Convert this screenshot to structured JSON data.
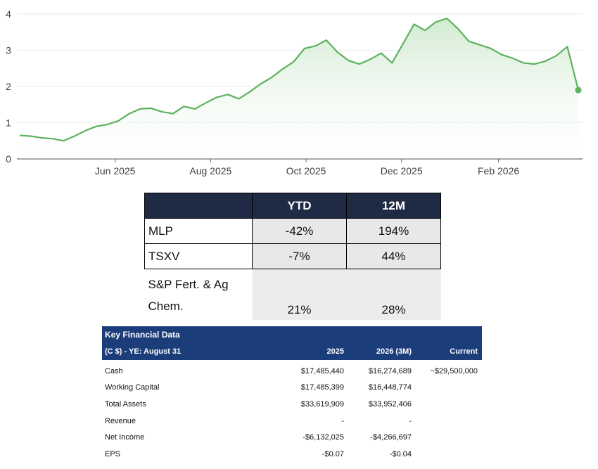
{
  "chart_data": {
    "type": "area",
    "ylim": [
      0,
      4
    ],
    "y_ticks": [
      "0",
      "1",
      "2",
      "3",
      "4"
    ],
    "x_ticks": [
      "Jun 2025",
      "Aug 2025",
      "Oct 2025",
      "Dec 2025",
      "Feb 2026"
    ],
    "line_color": "#5cb25d",
    "fill_color": "#dff1df",
    "grid": true,
    "x": [
      "2025-04-01",
      "2025-04-08",
      "2025-04-15",
      "2025-04-22",
      "2025-04-29",
      "2025-05-06",
      "2025-05-13",
      "2025-05-20",
      "2025-05-27",
      "2025-06-03",
      "2025-06-10",
      "2025-06-17",
      "2025-06-24",
      "2025-07-01",
      "2025-07-08",
      "2025-07-15",
      "2025-07-22",
      "2025-07-29",
      "2025-08-05",
      "2025-08-12",
      "2025-08-19",
      "2025-08-26",
      "2025-09-02",
      "2025-09-09",
      "2025-09-16",
      "2025-09-23",
      "2025-09-30",
      "2025-10-07",
      "2025-10-14",
      "2025-10-21",
      "2025-10-28",
      "2025-11-04",
      "2025-11-11",
      "2025-11-18",
      "2025-11-25",
      "2025-12-02",
      "2025-12-09",
      "2025-12-16",
      "2025-12-23",
      "2025-12-30",
      "2026-01-06",
      "2026-01-13",
      "2026-01-20",
      "2026-01-27",
      "2026-02-03",
      "2026-02-10",
      "2026-02-17",
      "2026-02-24",
      "2026-03-03",
      "2026-03-10",
      "2026-03-17",
      "2026-03-24"
    ],
    "values": [
      0.65,
      0.63,
      0.58,
      0.56,
      0.5,
      0.63,
      0.78,
      0.9,
      0.95,
      1.05,
      1.25,
      1.38,
      1.4,
      1.3,
      1.25,
      1.45,
      1.38,
      1.55,
      1.7,
      1.78,
      1.66,
      1.85,
      2.07,
      2.25,
      2.48,
      2.68,
      3.05,
      3.12,
      3.28,
      2.95,
      2.72,
      2.62,
      2.75,
      2.92,
      2.65,
      3.18,
      3.72,
      3.55,
      3.78,
      3.88,
      3.6,
      3.25,
      3.15,
      3.05,
      2.88,
      2.78,
      2.65,
      2.62,
      2.7,
      2.85,
      3.1,
      1.9
    ]
  },
  "perf_table": {
    "headers": [
      "",
      "YTD",
      "12M"
    ],
    "rows": [
      {
        "name": "MLP",
        "ytd": "-42%",
        "m12": "194%"
      },
      {
        "name": "TSXV",
        "ytd": "-7%",
        "m12": "44%"
      },
      {
        "name": "S&P Fert. & Ag Chem.",
        "ytd": "21%",
        "m12": "28%"
      }
    ]
  },
  "key_financial": {
    "title": "Key Financial Data",
    "subtitle": "(C $) - YE: August 31",
    "col_2025": "2025",
    "col_2026": "2026 (3M)",
    "col_current": "Current",
    "rows": [
      {
        "label": "Cash",
        "v2025": "$17,485,440",
        "v2026": "$16,274,689",
        "current": "~$29,500,000"
      },
      {
        "label": "Working Capital",
        "v2025": "$17,485,399",
        "v2026": "$16,448,774",
        "current": ""
      },
      {
        "label": "Total Assets",
        "v2025": "$33,619,909",
        "v2026": "$33,952,406",
        "current": ""
      },
      {
        "label": "Revenue",
        "v2025": "-",
        "v2026": "-",
        "current": ""
      },
      {
        "label": "Net Income",
        "v2025": "-$6,132,025",
        "v2026": "-$4,266,697",
        "current": ""
      },
      {
        "label": "EPS",
        "v2025": "-$0.07",
        "v2026": "-$0.04",
        "current": ""
      }
    ]
  }
}
